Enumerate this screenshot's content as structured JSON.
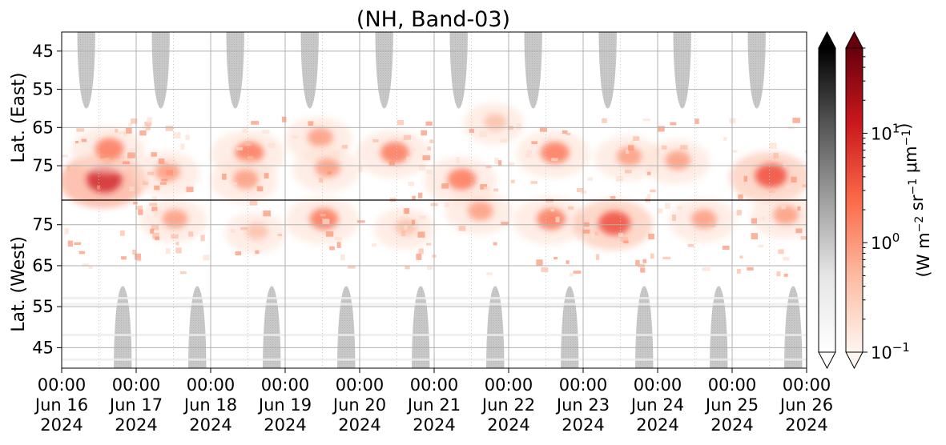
{
  "chart_data": {
    "type": "heatmap",
    "title": "(NH, Band-03)",
    "x_axis": {
      "start": "2024-06-16 00:00",
      "end": "2024-06-26 00:00",
      "tick_labels": [
        {
          "time": "00:00",
          "date": "Jun 16",
          "year": "2024"
        },
        {
          "time": "00:00",
          "date": "Jun 17",
          "year": "2024"
        },
        {
          "time": "00:00",
          "date": "Jun 18",
          "year": "2024"
        },
        {
          "time": "00:00",
          "date": "Jun 19",
          "year": "2024"
        },
        {
          "time": "00:00",
          "date": "Jun 20",
          "year": "2024"
        },
        {
          "time": "00:00",
          "date": "Jun 21",
          "year": "2024"
        },
        {
          "time": "00:00",
          "date": "Jun 22",
          "year": "2024"
        },
        {
          "time": "00:00",
          "date": "Jun 23",
          "year": "2024"
        },
        {
          "time": "00:00",
          "date": "Jun 24",
          "year": "2024"
        },
        {
          "time": "00:00",
          "date": "Jun 25",
          "year": "2024"
        },
        {
          "time": "00:00",
          "date": "Jun 26",
          "year": "2024"
        }
      ]
    },
    "panels": [
      {
        "ylabel": "Lat. (East)",
        "ylim": [
          40,
          84
        ],
        "ticks": [
          45,
          55,
          65,
          75
        ],
        "orientation": "increasing-down"
      },
      {
        "ylabel": "Lat. (West)",
        "ylim": [
          40,
          81
        ],
        "ticks": [
          75,
          65,
          55,
          45
        ],
        "orientation": "increasing-up"
      }
    ],
    "grid": true,
    "colorbars": [
      {
        "cmap": "Greys",
        "extend": "both"
      },
      {
        "cmap": "Reds",
        "extend": "both",
        "scale": "log",
        "range": [
          0.1,
          60
        ],
        "tick_labels": [
          "10^{-1}",
          "10^{0}",
          "10^{1}"
        ],
        "label": "(W m^{-2} sr^{-1} μm^{-1})"
      }
    ],
    "features": {
      "gray_masks_east": [
        {
          "day_center": 0.33
        },
        {
          "day_center": 1.33
        },
        {
          "day_center": 2.33
        },
        {
          "day_center": 3.33
        },
        {
          "day_center": 4.33
        },
        {
          "day_center": 5.33
        },
        {
          "day_center": 6.33
        },
        {
          "day_center": 7.33
        },
        {
          "day_center": 8.33
        },
        {
          "day_center": 9.33
        }
      ],
      "gray_masks_west": [
        {
          "day_center": 0.82
        },
        {
          "day_center": 1.82
        },
        {
          "day_center": 2.82
        },
        {
          "day_center": 3.82
        },
        {
          "day_center": 4.82
        },
        {
          "day_center": 5.82
        },
        {
          "day_center": 6.82
        },
        {
          "day_center": 7.82
        },
        {
          "day_center": 8.82
        },
        {
          "day_center": 9.82
        }
      ],
      "emission_blobs": [
        {
          "day": 0.55,
          "lat_e": 79,
          "intensity": 5
        },
        {
          "day": 0.62,
          "lat_e": 71,
          "intensity": 3
        },
        {
          "day": 1.4,
          "lat_e": 77,
          "intensity": 2
        },
        {
          "day": 1.5,
          "lat_w": 76,
          "intensity": 2
        },
        {
          "day": 2.5,
          "lat_e": 72,
          "intensity": 3
        },
        {
          "day": 2.45,
          "lat_e": 79,
          "intensity": 2
        },
        {
          "day": 2.6,
          "lat_w": 73,
          "intensity": 1
        },
        {
          "day": 3.5,
          "lat_w": 76,
          "intensity": 3
        },
        {
          "day": 3.45,
          "lat_e": 68,
          "intensity": 2
        },
        {
          "day": 3.55,
          "lat_e": 76,
          "intensity": 2
        },
        {
          "day": 4.45,
          "lat_e": 72,
          "intensity": 3
        },
        {
          "day": 4.6,
          "lat_w": 74,
          "intensity": 1
        },
        {
          "day": 5.35,
          "lat_e": 79,
          "intensity": 3
        },
        {
          "day": 5.6,
          "lat_w": 78,
          "intensity": 2
        },
        {
          "day": 5.8,
          "lat_e": 64,
          "intensity": 1
        },
        {
          "day": 6.6,
          "lat_e": 72,
          "intensity": 3
        },
        {
          "day": 6.55,
          "lat_w": 76,
          "intensity": 3
        },
        {
          "day": 7.4,
          "lat_w": 75,
          "intensity": 4
        },
        {
          "day": 7.6,
          "lat_e": 73,
          "intensity": 2
        },
        {
          "day": 8.25,
          "lat_e": 74,
          "intensity": 2
        },
        {
          "day": 8.6,
          "lat_w": 76,
          "intensity": 2
        },
        {
          "day": 9.5,
          "lat_e": 78,
          "intensity": 4
        },
        {
          "day": 9.7,
          "lat_w": 77,
          "intensity": 2
        }
      ]
    }
  }
}
